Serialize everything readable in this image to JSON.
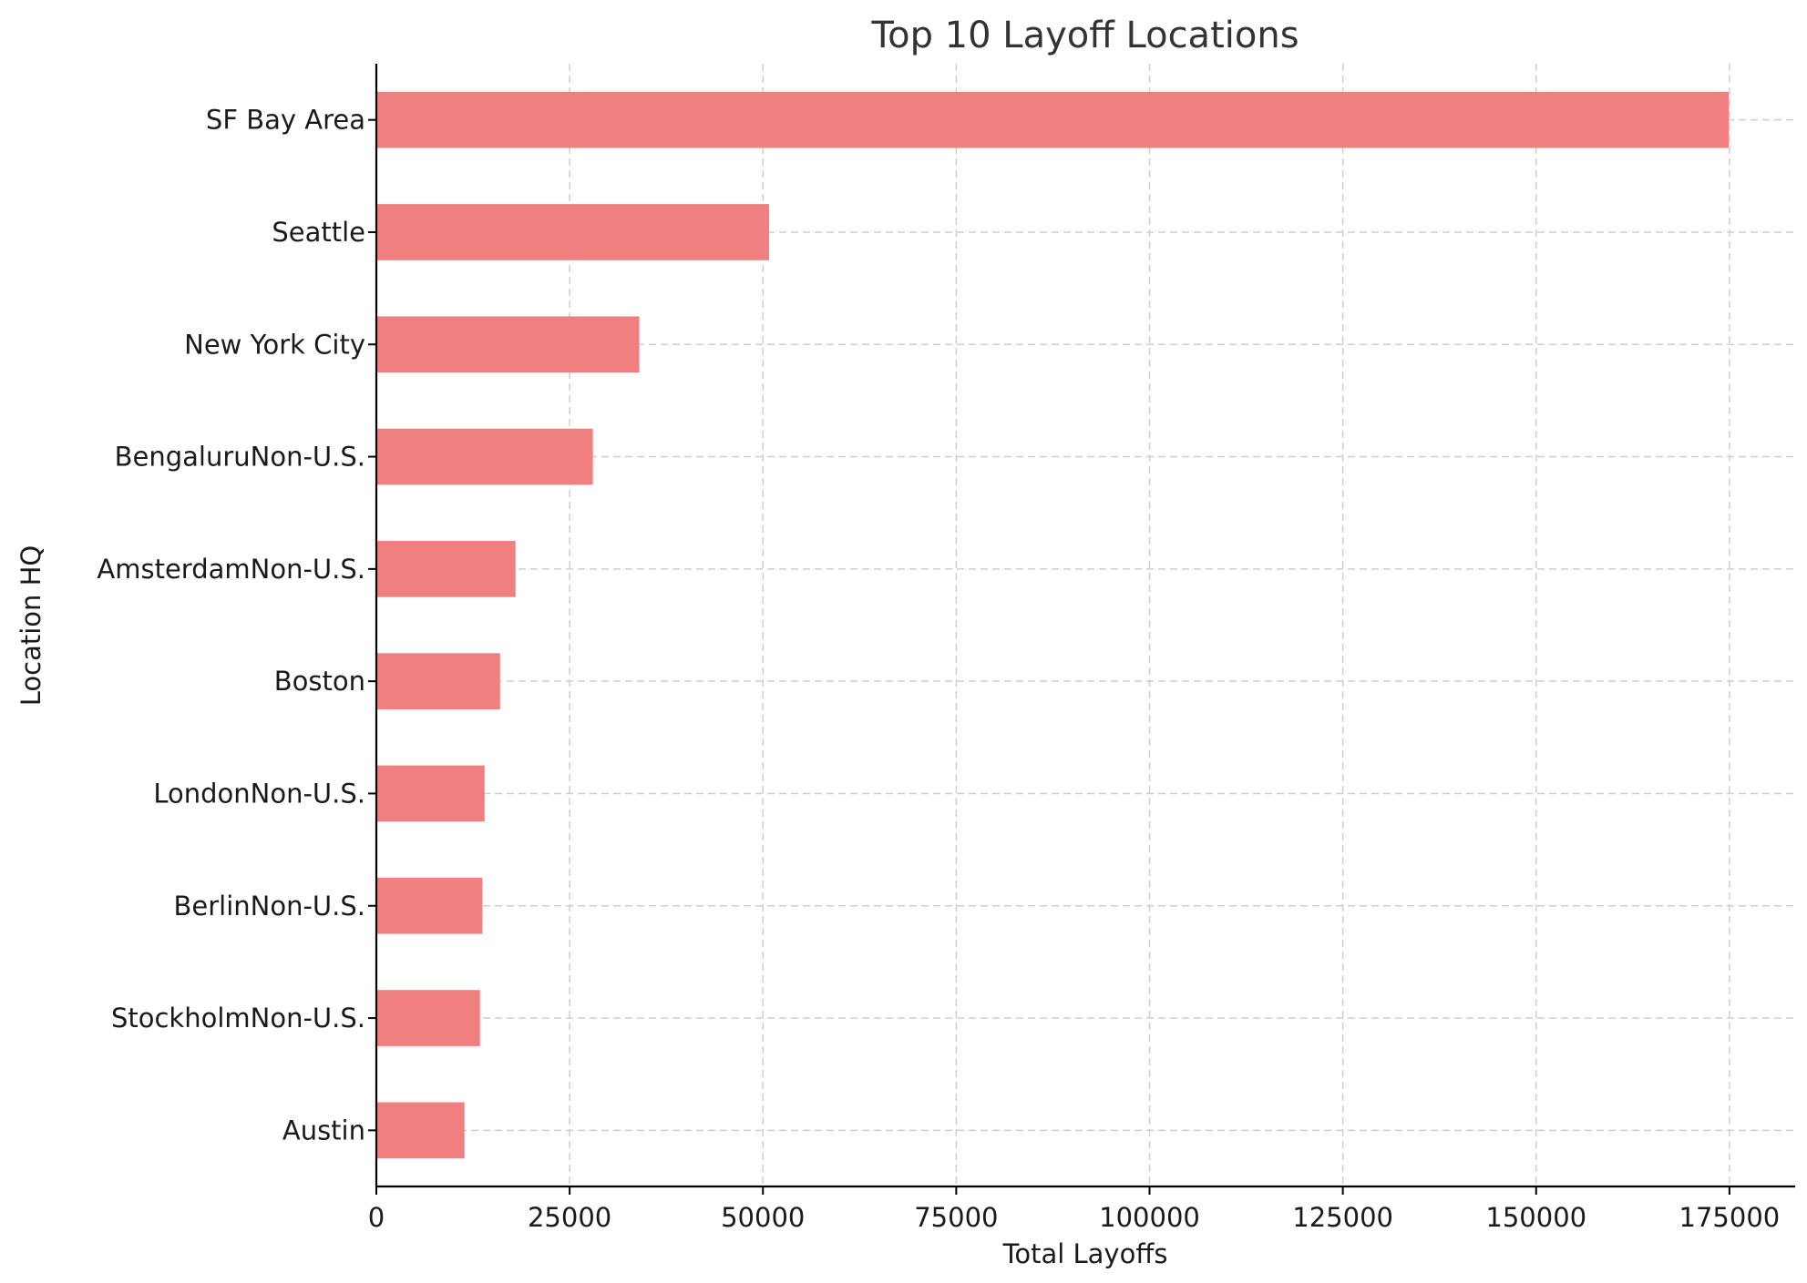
{
  "chart_data": {
    "type": "bar",
    "orientation": "horizontal",
    "title": "Top 10 Layoff Locations",
    "xlabel": "Total Layoffs",
    "ylabel": "Location HQ",
    "categories": [
      "SF Bay Area",
      "Seattle",
      "New York City",
      "BengaluruNon-U.S.",
      "AmsterdamNon-U.S.",
      "Boston",
      "LondonNon-U.S.",
      "BerlinNon-U.S.",
      "StockholmNon-U.S.",
      "Austin"
    ],
    "values": [
      174900,
      50800,
      34000,
      28000,
      18000,
      16000,
      14000,
      13700,
      13400,
      11400
    ],
    "xlim": [
      0,
      183500
    ],
    "xticks": [
      0,
      25000,
      50000,
      75000,
      100000,
      125000,
      150000,
      175000
    ],
    "xtick_labels": [
      "0",
      "25000",
      "50000",
      "75000",
      "100000",
      "125000",
      "150000",
      "175000"
    ],
    "bar_color": "#f08080",
    "grid": true,
    "legend": "none"
  }
}
